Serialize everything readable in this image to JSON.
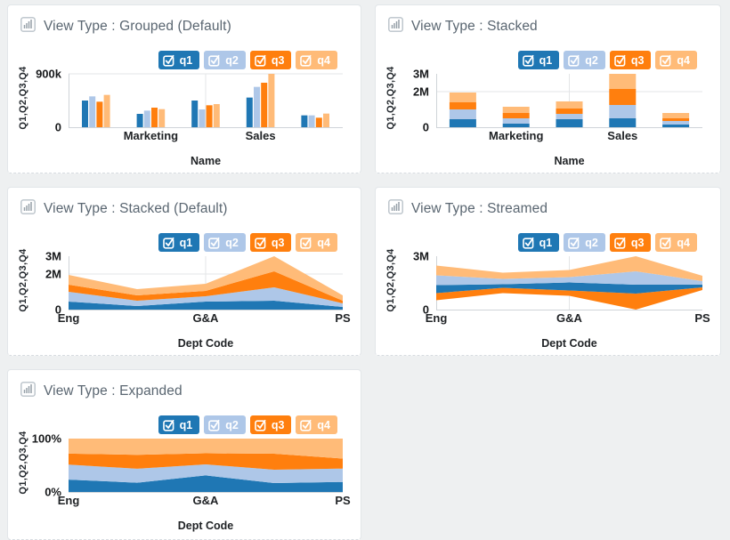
{
  "page": {
    "background": "#eef0f1"
  },
  "palette": {
    "q1": "#1f77b4",
    "q2": "#aec7e8",
    "q3": "#ff7f0e",
    "q4": "#ffbb78"
  },
  "legend": {
    "items": [
      {
        "label": "q1",
        "checked": true,
        "color": "#1f77b4"
      },
      {
        "label": "q2",
        "checked": true,
        "color": "#aec7e8"
      },
      {
        "label": "q3",
        "checked": true,
        "color": "#ff7f0e"
      },
      {
        "label": "q4",
        "checked": true,
        "color": "#ffbb78"
      }
    ]
  },
  "chart_data": [
    {
      "id": 0,
      "type": "bar",
      "view": "grouped",
      "title": "View Type : Grouped (Default)",
      "y_axis_label": "Q1,Q2,Q3,Q4",
      "x_title": "Name",
      "y_max": 900000,
      "y_ticks": [
        {
          "value": 900000,
          "label": "900k"
        },
        {
          "value": 0,
          "label": "0"
        }
      ],
      "gridlines_y": [
        900000
      ],
      "categories": [
        "",
        "Marketing",
        "",
        "Sales",
        ""
      ],
      "series": [
        {
          "name": "q1",
          "values": [
            450000,
            225000,
            450000,
            500000,
            200000
          ]
        },
        {
          "name": "q2",
          "values": [
            520000,
            280000,
            300000,
            680000,
            200000
          ]
        },
        {
          "name": "q3",
          "values": [
            430000,
            330000,
            370000,
            750000,
            160000
          ]
        },
        {
          "name": "q4",
          "values": [
            545000,
            305000,
            390000,
            900000,
            230000
          ]
        }
      ]
    },
    {
      "id": 1,
      "type": "bar",
      "view": "stacked-bar",
      "title": "View Type : Stacked",
      "y_axis_label": "Q1,Q2,Q3,Q4",
      "x_title": "Name",
      "y_max": 3000000,
      "y_ticks": [
        {
          "value": 3000000,
          "label": "3M"
        },
        {
          "value": 2000000,
          "label": "2M"
        },
        {
          "value": 0,
          "label": "0"
        }
      ],
      "gridlines_y": [
        2000000
      ],
      "categories": [
        "",
        "Marketing",
        "",
        "Sales",
        ""
      ],
      "series": [
        {
          "name": "q1",
          "values": [
            450000,
            200000,
            450000,
            500000,
            150000
          ]
        },
        {
          "name": "q2",
          "values": [
            550000,
            300000,
            300000,
            750000,
            200000
          ]
        },
        {
          "name": "q3",
          "values": [
            400000,
            300000,
            300000,
            900000,
            150000
          ]
        },
        {
          "name": "q4",
          "values": [
            550000,
            350000,
            400000,
            850000,
            300000
          ]
        }
      ]
    },
    {
      "id": 2,
      "type": "area",
      "view": "stacked-area",
      "title": "View Type : Stacked (Default)",
      "y_axis_label": "Q1,Q2,Q3,Q4",
      "x_title": "Dept Code",
      "y_max": 3000000,
      "y_ticks": [
        {
          "value": 3000000,
          "label": "3M"
        },
        {
          "value": 2000000,
          "label": "2M"
        },
        {
          "value": 0,
          "label": "0"
        }
      ],
      "gridlines_y": [
        2000000
      ],
      "categories": [
        "Eng",
        "",
        "G&A",
        "",
        "PS"
      ],
      "series": [
        {
          "name": "q1",
          "values": [
            450000,
            200000,
            450000,
            500000,
            150000
          ]
        },
        {
          "name": "q2",
          "values": [
            550000,
            300000,
            300000,
            750000,
            200000
          ]
        },
        {
          "name": "q3",
          "values": [
            400000,
            300000,
            300000,
            900000,
            150000
          ]
        },
        {
          "name": "q4",
          "values": [
            550000,
            350000,
            400000,
            850000,
            300000
          ]
        }
      ]
    },
    {
      "id": 3,
      "type": "area",
      "view": "stream",
      "title": "View Type : Streamed",
      "y_axis_label": "Q1,Q2,Q3,Q4",
      "x_title": "Dept Code",
      "y_max": 3000000,
      "y_ticks": [
        {
          "value": 3000000,
          "label": "3M"
        },
        {
          "value": 0,
          "label": "0"
        }
      ],
      "gridlines_y": [],
      "stream_order": [
        "q3",
        "q1",
        "q2",
        "q4"
      ],
      "categories": [
        "Eng",
        "",
        "G&A",
        "",
        "PS"
      ],
      "series": [
        {
          "name": "q1",
          "values": [
            450000,
            200000,
            450000,
            500000,
            150000
          ]
        },
        {
          "name": "q2",
          "values": [
            550000,
            300000,
            300000,
            750000,
            200000
          ]
        },
        {
          "name": "q3",
          "values": [
            400000,
            300000,
            300000,
            900000,
            150000
          ]
        },
        {
          "name": "q4",
          "values": [
            550000,
            350000,
            400000,
            850000,
            300000
          ]
        }
      ]
    },
    {
      "id": 4,
      "type": "area",
      "view": "expanded",
      "title": "View Type : Expanded",
      "y_axis_label": "Q1,Q2,Q3,Q4",
      "x_title": "Dept Code",
      "y_max": 1,
      "y_ticks": [
        {
          "value": 1,
          "label": "100%"
        },
        {
          "value": 0,
          "label": "0%"
        }
      ],
      "gridlines_y": [],
      "categories": [
        "Eng",
        "",
        "G&A",
        "",
        "PS"
      ],
      "series": [
        {
          "name": "q1",
          "values": [
            450000,
            200000,
            450000,
            500000,
            150000
          ]
        },
        {
          "name": "q2",
          "values": [
            550000,
            300000,
            300000,
            750000,
            200000
          ]
        },
        {
          "name": "q3",
          "values": [
            400000,
            300000,
            300000,
            900000,
            150000
          ]
        },
        {
          "name": "q4",
          "values": [
            550000,
            350000,
            400000,
            850000,
            300000
          ]
        }
      ]
    }
  ]
}
